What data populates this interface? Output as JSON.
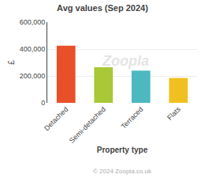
{
  "chart_data": {
    "type": "bar",
    "title": "Avg values (Sep 2024)",
    "categories": [
      "Detached",
      "Semi-detached",
      "Terraced",
      "Flats"
    ],
    "values": [
      425000,
      265000,
      240000,
      185000
    ],
    "colors": [
      "#e8502a",
      "#a8c838",
      "#4db8c0",
      "#f0c020"
    ],
    "xlabel": "Property type",
    "ylabel": "£",
    "ylim": [
      0,
      600000
    ],
    "yticks": [
      0,
      {
        "value": 200000,
        "label": "200,000"
      },
      {
        "value": 400000,
        "label": "400,000"
      },
      {
        "value": 600000,
        "label": "600,000"
      }
    ],
    "grid": true,
    "annotations": [
      "Zoopla",
      "© 2024 Zoopla.co.uk"
    ]
  }
}
